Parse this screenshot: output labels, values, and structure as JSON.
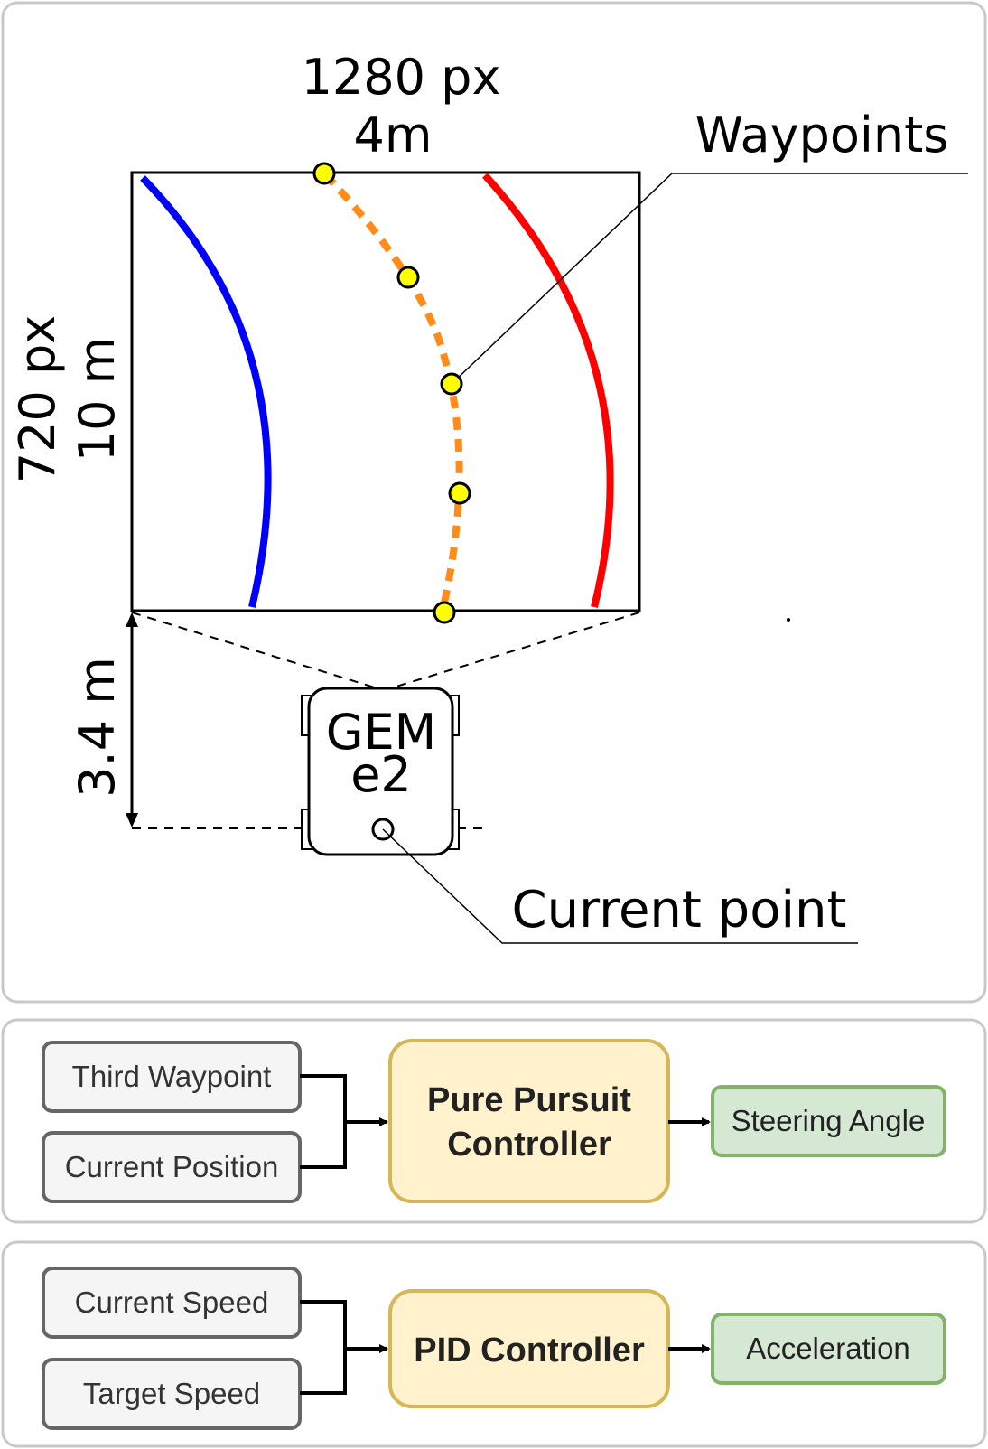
{
  "diagram": {
    "width_label": "1280 px",
    "width_meters": "4m",
    "height_label": "720 px",
    "height_meters": "10 m",
    "distance_label": "3.4 m",
    "vehicle_line1": "GEM",
    "vehicle_line2": "e2",
    "waypoints_label": "Waypoints",
    "current_point_label": "Current point",
    "colors": {
      "left_lane": "#0000ff",
      "right_lane": "#ff0000",
      "path": "#ff8c1a",
      "waypoint": "#ffff00"
    }
  },
  "steering_flow": {
    "inputs": [
      "Third Waypoint",
      "Current Position"
    ],
    "controller": [
      "Pure Pursuit",
      "Controller"
    ],
    "output": "Steering Angle"
  },
  "speed_flow": {
    "inputs": [
      "Current Speed",
      "Target Speed"
    ],
    "controller": "PID Controller",
    "output": "Acceleration"
  }
}
